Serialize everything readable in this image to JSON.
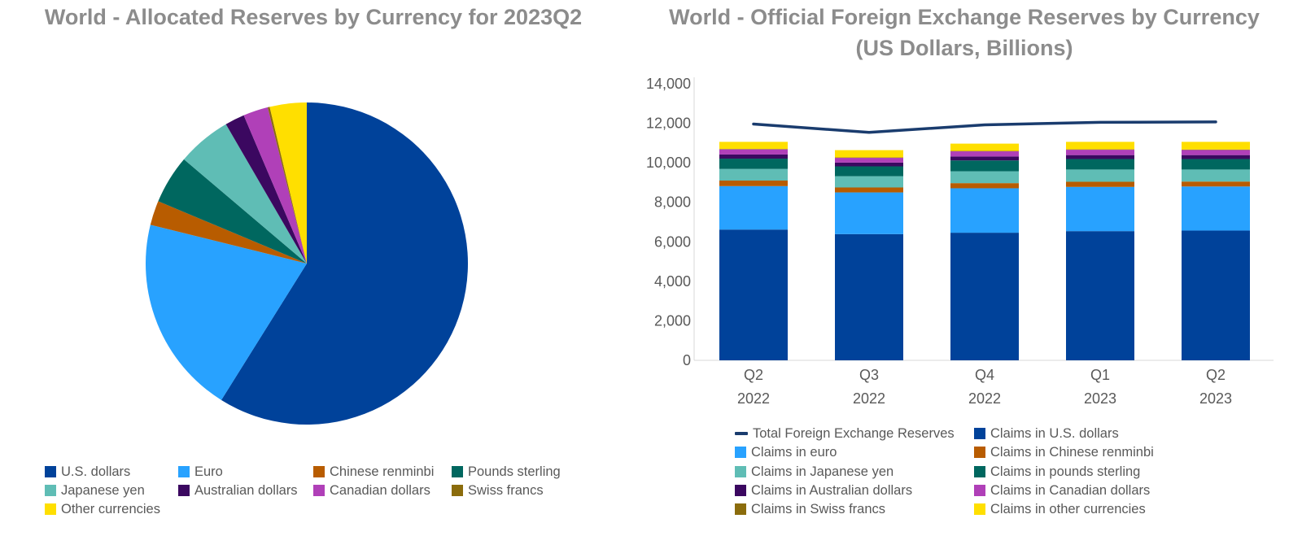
{
  "colors": {
    "usd": "#00429a",
    "eur": "#28a2ff",
    "cny": "#b85c00",
    "gbp": "#00675f",
    "jpy": "#5fbdb5",
    "aud": "#3b0860",
    "cad": "#b040b8",
    "chf": "#8b6c0c",
    "other": "#ffdf00",
    "total_line": "#1a3c6e",
    "title": "#8c8c8c"
  },
  "chart_data": [
    {
      "type": "pie",
      "title": "World - Allocated Reserves by Currency for 2023Q2",
      "legend_position": "bottom",
      "slices": [
        {
          "label": "U.S. dollars",
          "value": 58.9,
          "color_key": "usd"
        },
        {
          "label": "Euro",
          "value": 19.97,
          "color_key": "eur"
        },
        {
          "label": "Chinese renminbi",
          "value": 2.45,
          "color_key": "cny"
        },
        {
          "label": "Pounds sterling",
          "value": 4.88,
          "color_key": "gbp"
        },
        {
          "label": "Japanese yen",
          "value": 5.43,
          "color_key": "jpy"
        },
        {
          "label": "Australian dollars",
          "value": 1.97,
          "color_key": "aud"
        },
        {
          "label": "Canadian dollars",
          "value": 2.5,
          "color_key": "cad"
        },
        {
          "label": "Swiss francs",
          "value": 0.2,
          "color_key": "chf"
        },
        {
          "label": "Other currencies",
          "value": 3.7,
          "color_key": "other"
        }
      ]
    },
    {
      "type": "bar",
      "stacked": true,
      "title": "World - Official Foreign Exchange Reserves by Currency",
      "subtitle": "(US Dollars, Billions)",
      "categories": [
        [
          "Q2",
          "2022"
        ],
        [
          "Q3",
          "2022"
        ],
        [
          "Q4",
          "2022"
        ],
        [
          "Q1",
          "2023"
        ],
        [
          "Q2",
          "2023"
        ]
      ],
      "ylim": [
        0,
        14000
      ],
      "yticks": [
        "0",
        "2,000",
        "4,000",
        "6,000",
        "8,000",
        "10,000",
        "12,000",
        "14,000"
      ],
      "ytick_values": [
        0,
        2000,
        4000,
        6000,
        8000,
        10000,
        12000,
        14000
      ],
      "grid": false,
      "legend_position": "bottom",
      "series": [
        {
          "name": "Claims in U.S. dollars",
          "color_key": "usd",
          "values": [
            6620,
            6390,
            6460,
            6540,
            6570
          ]
        },
        {
          "name": "Claims in euro",
          "color_key": "eur",
          "values": [
            2200,
            2110,
            2250,
            2240,
            2230
          ]
        },
        {
          "name": "Claims in Chinese renminbi",
          "color_key": "cny",
          "values": [
            280,
            250,
            260,
            260,
            250
          ]
        },
        {
          "name": "Claims in Japanese yen",
          "color_key": "jpy",
          "values": [
            590,
            570,
            600,
            620,
            610
          ]
        },
        {
          "name": "Claims in pounds sterling",
          "color_key": "gbp",
          "values": [
            520,
            500,
            550,
            530,
            530
          ]
        },
        {
          "name": "Claims in Australian dollars",
          "color_key": "aud",
          "values": [
            210,
            190,
            200,
            200,
            200
          ]
        },
        {
          "name": "Claims in Canadian dollars",
          "color_key": "cad",
          "values": [
            260,
            240,
            260,
            270,
            260
          ]
        },
        {
          "name": "Claims in Swiss francs",
          "color_key": "chf",
          "values": [
            20,
            20,
            20,
            20,
            20
          ]
        },
        {
          "name": "Claims in other currencies",
          "color_key": "other",
          "values": [
            360,
            370,
            370,
            380,
            390
          ]
        }
      ],
      "line_series": {
        "name": "Total Foreign Exchange Reserves",
        "color_key": "total_line",
        "values": [
          11960,
          11540,
          11920,
          12050,
          12070
        ]
      }
    }
  ],
  "pie_legend": [
    "U.S. dollars",
    "Euro",
    "Chinese renminbi",
    "Pounds sterling",
    "Japanese yen",
    "Australian dollars",
    "Canadian dollars",
    "Swiss francs",
    "Other currencies"
  ],
  "bar_legend": [
    "Total Foreign Exchange Reserves",
    "Claims in U.S. dollars",
    "Claims in euro",
    "Claims in Chinese renminbi",
    "Claims in Japanese yen",
    "Claims in pounds sterling",
    "Claims in Australian dollars",
    "Claims in Canadian dollars",
    "Claims in Swiss francs",
    "Claims in other currencies"
  ]
}
